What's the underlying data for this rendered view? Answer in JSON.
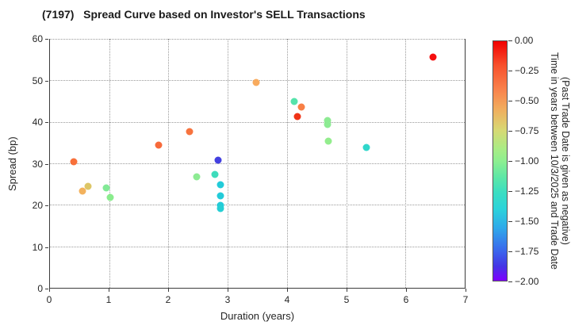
{
  "title": "(7197)   Spread Curve based on Investor's SELL Transactions",
  "chart_data": {
    "type": "scatter",
    "title": "(7197)   Spread Curve based on Investor's SELL Transactions",
    "xlabel": "Duration (years)",
    "ylabel": "Spread (bp)",
    "xlim": [
      0,
      7
    ],
    "ylim": [
      0,
      60
    ],
    "x_ticks": [
      0,
      1,
      2,
      3,
      4,
      5,
      6,
      7
    ],
    "y_ticks": [
      0,
      10,
      20,
      30,
      40,
      50,
      60
    ],
    "grid": true,
    "points": [
      {
        "x": 0.4,
        "y": 30.3,
        "time": -0.22,
        "color": "#f8703a"
      },
      {
        "x": 0.55,
        "y": 23.3,
        "time": -0.5,
        "color": "#f3b25d"
      },
      {
        "x": 0.64,
        "y": 24.4,
        "time": -0.62,
        "color": "#ddc666"
      },
      {
        "x": 0.95,
        "y": 24.1,
        "time": -0.93,
        "color": "#82e996"
      },
      {
        "x": 1.02,
        "y": 21.7,
        "time": -0.9,
        "color": "#8aec8d"
      },
      {
        "x": 1.83,
        "y": 34.4,
        "time": -0.28,
        "color": "#f76a3a"
      },
      {
        "x": 2.36,
        "y": 37.7,
        "time": -0.3,
        "color": "#f7733e"
      },
      {
        "x": 2.47,
        "y": 26.8,
        "time": -0.88,
        "color": "#8deb93"
      },
      {
        "x": 2.78,
        "y": 27.4,
        "time": -1.15,
        "color": "#3edcbc"
      },
      {
        "x": 2.84,
        "y": 30.7,
        "time": -1.8,
        "color": "#4340e0"
      },
      {
        "x": 2.88,
        "y": 24.9,
        "time": -1.33,
        "color": "#22cbd9"
      },
      {
        "x": 2.88,
        "y": 22.1,
        "time": -1.33,
        "color": "#22cbd9"
      },
      {
        "x": 2.88,
        "y": 19.9,
        "time": -1.33,
        "color": "#22cbd9"
      },
      {
        "x": 2.88,
        "y": 19.2,
        "time": -1.3,
        "color": "#25cfd4"
      },
      {
        "x": 3.48,
        "y": 49.4,
        "time": -0.5,
        "color": "#f8ab5e"
      },
      {
        "x": 4.12,
        "y": 44.9,
        "time": -1.05,
        "color": "#55e3ab"
      },
      {
        "x": 4.24,
        "y": 43.6,
        "time": -0.38,
        "color": "#f87f45"
      },
      {
        "x": 4.17,
        "y": 41.2,
        "time": -0.1,
        "color": "#f03317"
      },
      {
        "x": 4.69,
        "y": 40.3,
        "time": -0.85,
        "color": "#8deb93"
      },
      {
        "x": 4.69,
        "y": 39.4,
        "time": -0.85,
        "color": "#8deb93"
      },
      {
        "x": 4.7,
        "y": 35.4,
        "time": -0.82,
        "color": "#93ed8d"
      },
      {
        "x": 5.34,
        "y": 33.9,
        "time": -1.2,
        "color": "#30d7cb"
      },
      {
        "x": 6.47,
        "y": 55.7,
        "time": 0.0,
        "color": "#f50f0f"
      }
    ],
    "colorbar": {
      "label_line1": "Time in years between 10/3/2025 and Trade Date",
      "label_line2": "(Past Trade Date is given as negative)",
      "min": -2.0,
      "max": 0.0,
      "tick_labels": [
        "0.00",
        "−0.25",
        "−0.50",
        "−0.75",
        "−1.00",
        "−1.25",
        "−1.50",
        "−1.75",
        "−2.00"
      ],
      "tick_values": [
        0.0,
        -0.25,
        -0.5,
        -0.75,
        -1.0,
        -1.25,
        -1.5,
        -1.75,
        -2.0
      ],
      "gradient_stops": [
        [
          "0%",
          "#f10000"
        ],
        [
          "10%",
          "#f7502c"
        ],
        [
          "20%",
          "#f9814b"
        ],
        [
          "28%",
          "#f2ab5d"
        ],
        [
          "37%",
          "#d8d873"
        ],
        [
          "45%",
          "#a9ec85"
        ],
        [
          "50%",
          "#8def90"
        ],
        [
          "57%",
          "#5ce7a7"
        ],
        [
          "63%",
          "#3cdec1"
        ],
        [
          "70%",
          "#2cd3da"
        ],
        [
          "78%",
          "#2fa9ea"
        ],
        [
          "88%",
          "#3b62ec"
        ],
        [
          "94%",
          "#4435e5"
        ],
        [
          "100%",
          "#7f00ff"
        ]
      ]
    }
  }
}
